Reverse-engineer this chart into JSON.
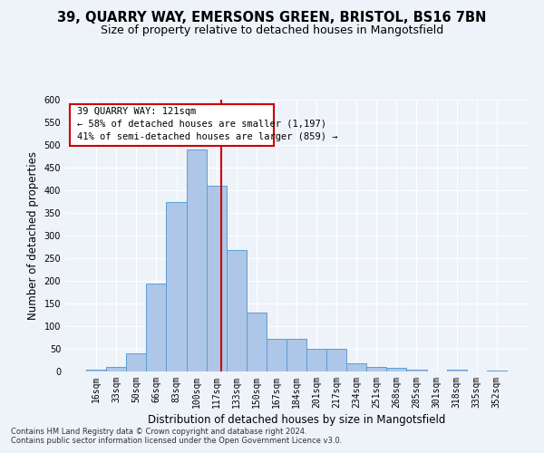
{
  "title_line1": "39, QUARRY WAY, EMERSONS GREEN, BRISTOL, BS16 7BN",
  "title_line2": "Size of property relative to detached houses in Mangotsfield",
  "xlabel": "Distribution of detached houses by size in Mangotsfield",
  "ylabel": "Number of detached properties",
  "categories": [
    "16sqm",
    "33sqm",
    "50sqm",
    "66sqm",
    "83sqm",
    "100sqm",
    "117sqm",
    "133sqm",
    "150sqm",
    "167sqm",
    "184sqm",
    "201sqm",
    "217sqm",
    "234sqm",
    "251sqm",
    "268sqm",
    "285sqm",
    "301sqm",
    "318sqm",
    "335sqm",
    "352sqm"
  ],
  "values": [
    5,
    10,
    40,
    195,
    375,
    490,
    410,
    268,
    130,
    73,
    73,
    50,
    50,
    18,
    10,
    8,
    5,
    0,
    5,
    0,
    2
  ],
  "bar_color": "#aec6e8",
  "bar_edge_color": "#5a9fd4",
  "bar_width": 1.0,
  "vline_color": "#cc0000",
  "annotation_line1": "39 QUARRY WAY: 121sqm",
  "annotation_line2": "← 58% of detached houses are smaller (1,197)",
  "annotation_line3": "41% of semi-detached houses are larger (859) →",
  "ylim": [
    0,
    600
  ],
  "yticks": [
    0,
    50,
    100,
    150,
    200,
    250,
    300,
    350,
    400,
    450,
    500,
    550,
    600
  ],
  "background_color": "#eef2f9",
  "grid_color": "#ffffff",
  "footnote1": "Contains HM Land Registry data © Crown copyright and database right 2024.",
  "footnote2": "Contains public sector information licensed under the Open Government Licence v3.0.",
  "title_fontsize": 10.5,
  "subtitle_fontsize": 9,
  "xlabel_fontsize": 8.5,
  "ylabel_fontsize": 8.5,
  "annotation_fontsize": 7.5,
  "tick_fontsize": 7
}
